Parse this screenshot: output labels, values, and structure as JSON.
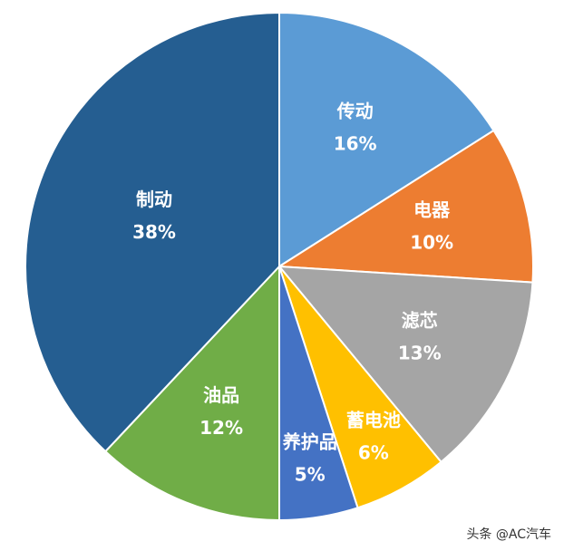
{
  "chart_data": {
    "type": "pie",
    "categories": [
      "传动",
      "电器",
      "滤芯",
      "蓄电池",
      "养护品",
      "油品",
      "制动"
    ],
    "values": [
      16,
      10,
      13,
      6,
      5,
      12,
      38
    ],
    "value_labels": [
      "16%",
      "10%",
      "13%",
      "6%",
      "5%",
      "12%",
      "38%"
    ],
    "colors": [
      "#5b9bd5",
      "#ed7d31",
      "#a5a5a5",
      "#ffc000",
      "#4472c4",
      "#70ad47",
      "#255e91"
    ],
    "watermark": "头条 @AC汽车"
  }
}
